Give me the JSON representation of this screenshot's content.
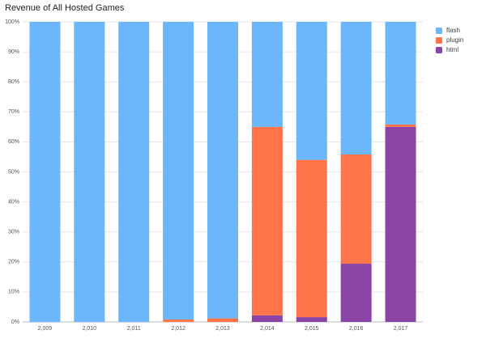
{
  "chart_data": {
    "type": "stacked_bar",
    "title": "Revenue of All Hosted Games",
    "categories": [
      "2,009",
      "2,010",
      "2,011",
      "2,012",
      "2,013",
      "2,014",
      "2,015",
      "2,016",
      "2,017"
    ],
    "series": [
      {
        "name": "flash",
        "color": "#6cb6fb",
        "values": [
          100,
          100,
          100,
          99.2,
          98.8,
          35,
          46,
          44.2,
          34.2
        ]
      },
      {
        "name": "plugin",
        "color": "#ff7448",
        "values": [
          0,
          0,
          0,
          0.8,
          1.2,
          62.8,
          52.4,
          36.4,
          0.8
        ]
      },
      {
        "name": "html",
        "color": "#8a44a6",
        "values": [
          0,
          0,
          0,
          0,
          0,
          2.2,
          1.6,
          19.4,
          65
        ]
      }
    ],
    "ylim": [
      0,
      100
    ],
    "yticks": [
      {
        "value": 0,
        "label": "0%"
      },
      {
        "value": 10,
        "label": "10%"
      },
      {
        "value": 20,
        "label": "20%"
      },
      {
        "value": 30,
        "label": "30%"
      },
      {
        "value": 40,
        "label": "40%"
      },
      {
        "value": 50,
        "label": "50%"
      },
      {
        "value": 60,
        "label": "60%"
      },
      {
        "value": 70,
        "label": "70%"
      },
      {
        "value": 80,
        "label": "80%"
      },
      {
        "value": 90,
        "label": "90%"
      },
      {
        "value": 100,
        "label": "100%"
      }
    ],
    "grid": true,
    "legend": "right"
  }
}
